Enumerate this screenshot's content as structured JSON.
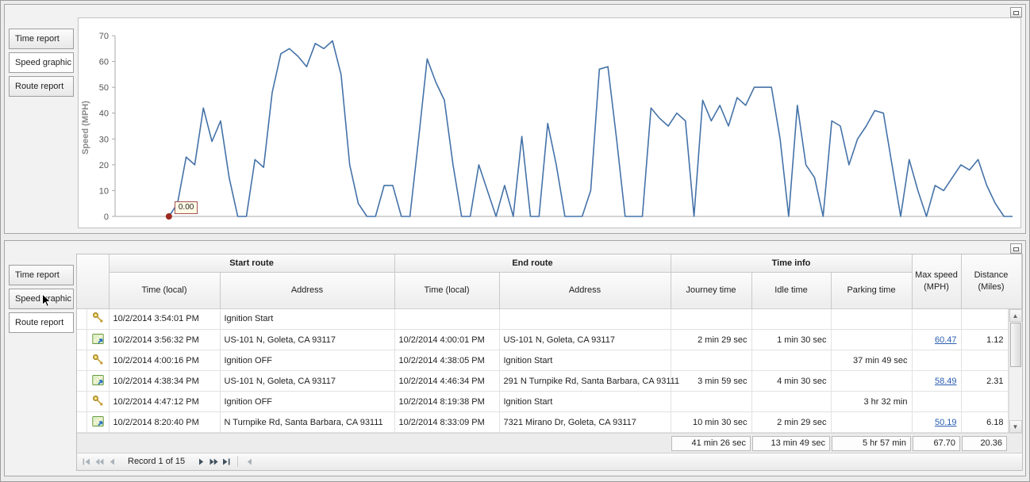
{
  "app": {
    "colors": {
      "chart_line": "#4472a8",
      "marker": "#9c2a21",
      "link": "#2a5db0"
    }
  },
  "top_panel": {
    "tabs": [
      {
        "label": "Time report",
        "selected": false
      },
      {
        "label": "Speed graphic",
        "selected": true
      },
      {
        "label": "Route report",
        "selected": false
      }
    ]
  },
  "chart_data": {
    "type": "line",
    "title": "",
    "xlabel": "",
    "ylabel": "Speed (MPH)",
    "ylim": [
      0,
      70
    ],
    "yticks": [
      0,
      10,
      20,
      30,
      40,
      50,
      60,
      70
    ],
    "grid": false,
    "legend": false,
    "line_color": "#4472a8",
    "x_start_frac": 0.06,
    "marker": {
      "label": "0.00",
      "color": "#9c2a21",
      "index": 0
    },
    "values": [
      0,
      5,
      23,
      20,
      42,
      29,
      37,
      15,
      0,
      0,
      22,
      19,
      48,
      63,
      65,
      62,
      58,
      67,
      65,
      68,
      55,
      20,
      5,
      0,
      0,
      12,
      12,
      0,
      0,
      30,
      61,
      52,
      45,
      20,
      0,
      0,
      20,
      10,
      0,
      12,
      0,
      31,
      0,
      0,
      36,
      20,
      0,
      0,
      0,
      10,
      57,
      58,
      30,
      0,
      0,
      0,
      42,
      38,
      35,
      40,
      37,
      0,
      45,
      37,
      43,
      35,
      46,
      43,
      50,
      50,
      50,
      30,
      0,
      43,
      20,
      15,
      0,
      37,
      35,
      20,
      30,
      35,
      41,
      40,
      20,
      0,
      22,
      10,
      0,
      12,
      10,
      15,
      20,
      18,
      22,
      12,
      5,
      0,
      0
    ]
  },
  "bottom_panel": {
    "tabs": [
      {
        "label": "Time report",
        "selected": false
      },
      {
        "label": "Speed graphic",
        "selected": false
      },
      {
        "label": "Route report",
        "selected": true
      }
    ],
    "table": {
      "groups": [
        "Start route",
        "End route",
        "Time info"
      ],
      "columns": {
        "start_time": "Time (local)",
        "start_address": "Address",
        "end_time": "Time (local)",
        "end_address": "Address",
        "journey_time": "Journey time",
        "idle_time": "Idle time",
        "parking_time": "Parking time",
        "max_speed": "Max speed (MPH)",
        "distance": "Distance (Miles)"
      },
      "rows": [
        {
          "icon": "key",
          "start_time": "10/2/2014 3:54:01 PM",
          "start_address": "Ignition Start",
          "end_time": "",
          "end_address": "",
          "journey_time": "",
          "idle_time": "",
          "parking_time": "",
          "max_speed": "",
          "max_speed_link": false,
          "distance": ""
        },
        {
          "icon": "route",
          "start_time": "10/2/2014 3:56:32 PM",
          "start_address": "US-101 N, Goleta, CA 93117",
          "end_time": "10/2/2014 4:00:01 PM",
          "end_address": "US-101 N, Goleta, CA 93117",
          "journey_time": "2 min 29 sec",
          "idle_time": "1 min 30 sec",
          "parking_time": "",
          "max_speed": "60.47",
          "max_speed_link": true,
          "distance": "1.12"
        },
        {
          "icon": "key",
          "start_time": "10/2/2014 4:00:16 PM",
          "start_address": "Ignition OFF",
          "end_time": "10/2/2014 4:38:05 PM",
          "end_address": "Ignition Start",
          "journey_time": "",
          "idle_time": "",
          "parking_time": "37 min 49 sec",
          "max_speed": "",
          "max_speed_link": false,
          "distance": ""
        },
        {
          "icon": "route",
          "start_time": "10/2/2014 4:38:34 PM",
          "start_address": "US-101 N, Goleta, CA 93117",
          "end_time": "10/2/2014 4:46:34 PM",
          "end_address": "291 N Turnpike Rd, Santa Barbara, CA 93111",
          "journey_time": "3 min 59 sec",
          "idle_time": "4 min 30 sec",
          "parking_time": "",
          "max_speed": "58.49",
          "max_speed_link": true,
          "distance": "2.31"
        },
        {
          "icon": "key",
          "start_time": "10/2/2014 4:47:12 PM",
          "start_address": "Ignition OFF",
          "end_time": "10/2/2014 8:19:38 PM",
          "end_address": "Ignition Start",
          "journey_time": "",
          "idle_time": "",
          "parking_time": "3 hr 32 min",
          "max_speed": "",
          "max_speed_link": false,
          "distance": ""
        },
        {
          "icon": "route",
          "start_time": "10/2/2014 8:20:40 PM",
          "start_address": "N Turnpike Rd, Santa Barbara, CA 93111",
          "end_time": "10/2/2014 8:33:09 PM",
          "end_address": "7321 Mirano Dr, Goleta, CA 93117",
          "journey_time": "10 min 30 sec",
          "idle_time": "2 min 29 sec",
          "parking_time": "",
          "max_speed": "50.19",
          "max_speed_link": true,
          "distance": "6.18"
        }
      ],
      "summary": {
        "journey_time": "41 min 26 sec",
        "idle_time": "13 min 49 sec",
        "parking_time": "5 hr 57 min",
        "max_speed": "67.70",
        "distance": "20.36"
      },
      "pager": {
        "record_label": "Record 1 of 15"
      }
    }
  }
}
